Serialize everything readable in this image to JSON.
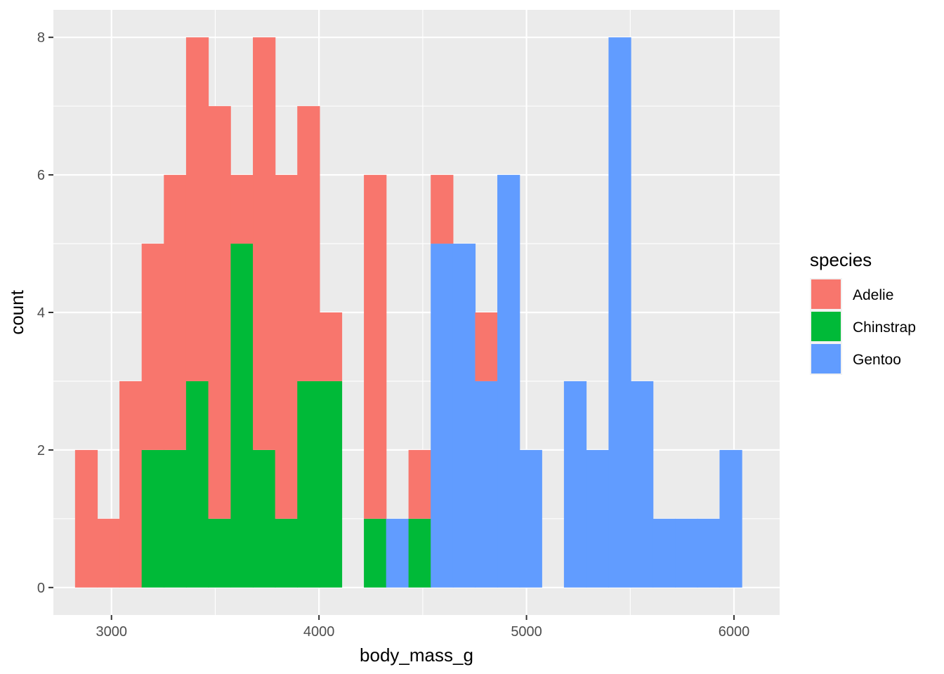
{
  "chart_data": {
    "type": "bar",
    "subtype": "stacked-histogram",
    "xlabel": "body_mass_g",
    "ylabel": "count",
    "xlim": [
      2720,
      6220
    ],
    "ylim": [
      -0.4,
      8.4
    ],
    "x_ticks": [
      3000,
      4000,
      5000,
      6000
    ],
    "y_ticks": [
      0,
      2,
      4,
      6,
      8
    ],
    "x_tick_labels": [
      "3000",
      "4000",
      "5000",
      "6000"
    ],
    "y_tick_labels": [
      "0",
      "2",
      "4",
      "6",
      "8"
    ],
    "grid": true,
    "legend": {
      "title": "species",
      "placement": "right"
    },
    "bins": {
      "start": 2824,
      "width": 107.1,
      "centers": [
        2878,
        2985,
        3092,
        3199,
        3306,
        3413,
        3520,
        3628,
        3735,
        3842,
        3949,
        4056,
        4163,
        4270,
        4377,
        4485,
        4592,
        4699,
        4806,
        4913,
        5020,
        5127,
        5234,
        5342,
        5449,
        5556,
        5663,
        5770,
        5877,
        5984
      ]
    },
    "series": [
      {
        "name": "Adelie",
        "color": "#F8766D",
        "values": [
          2,
          1,
          3,
          3,
          4,
          5,
          6,
          1,
          6,
          5,
          4,
          1,
          0,
          5,
          0,
          1,
          1,
          0,
          1,
          0,
          0,
          0,
          0,
          0,
          0,
          0,
          0,
          0,
          0,
          0
        ]
      },
      {
        "name": "Chinstrap",
        "color": "#00BA38",
        "values": [
          0,
          0,
          0,
          2,
          2,
          3,
          1,
          5,
          2,
          1,
          3,
          3,
          0,
          1,
          0,
          1,
          0,
          0,
          0,
          0,
          0,
          0,
          0,
          0,
          0,
          0,
          0,
          0,
          0,
          0
        ]
      },
      {
        "name": "Gentoo",
        "color": "#619CFF",
        "values": [
          0,
          0,
          0,
          0,
          0,
          0,
          0,
          0,
          0,
          0,
          0,
          0,
          0,
          0,
          1,
          0,
          5,
          5,
          3,
          6,
          2,
          0,
          3,
          2,
          8,
          3,
          1,
          1,
          1,
          2
        ]
      }
    ]
  }
}
